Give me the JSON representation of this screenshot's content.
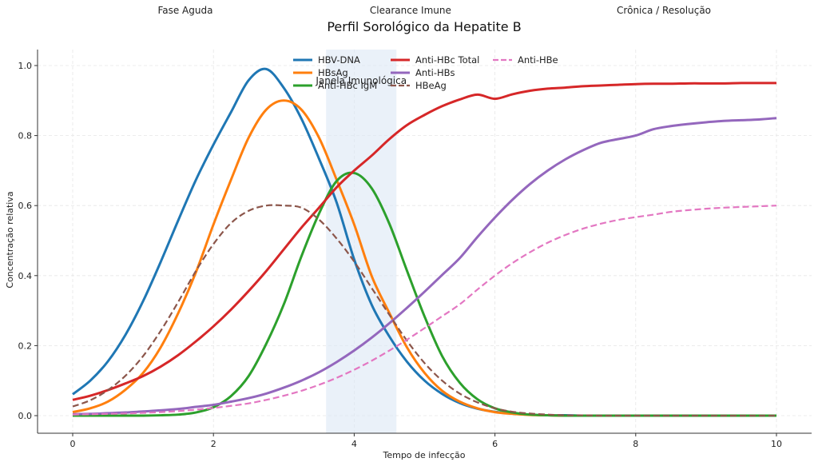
{
  "chart_data": {
    "type": "line",
    "title": "Perfil Sorológico da Hepatite B",
    "xlabel": "Tempo de infecção",
    "ylabel": "Concentração relativa",
    "xlim": [
      -0.5,
      10.5
    ],
    "ylim": [
      -0.05,
      1.05
    ],
    "xticks": [
      0,
      2,
      4,
      6,
      8,
      10
    ],
    "xtick_labels": [
      "0",
      "2",
      "4",
      "6",
      "8",
      "10"
    ],
    "yticks": [
      0.0,
      0.2,
      0.4,
      0.6,
      0.8,
      1.0
    ],
    "ytick_labels": [
      "0.0",
      "0.2",
      "0.4",
      "0.6",
      "0.8",
      "1.0"
    ],
    "grid": true,
    "legend_position": "top-center",
    "phase_labels": [
      {
        "text": "Fase Aguda",
        "x": 1.6
      },
      {
        "text": "Clearance Imune",
        "x": 4.8
      },
      {
        "text": "Crônica / Resolução",
        "x": 8.4
      }
    ],
    "shaded_region": {
      "x_start": 3.6,
      "x_end": 4.6,
      "label": "Janela Imunológica",
      "color": "#dce8f5"
    },
    "x": [
      0,
      0.25,
      0.5,
      0.75,
      1,
      1.25,
      1.5,
      1.75,
      2,
      2.25,
      2.5,
      2.75,
      3,
      3.25,
      3.5,
      3.75,
      4,
      4.25,
      4.5,
      4.75,
      5,
      5.25,
      5.5,
      5.75,
      6,
      6.25,
      6.5,
      6.75,
      7,
      7.25,
      7.5,
      7.75,
      8,
      8.25,
      8.5,
      8.75,
      9,
      9.25,
      9.5,
      9.75,
      10
    ],
    "series": [
      {
        "name": "HBV-DNA",
        "color": "#1f77b4",
        "style": "solid",
        "values": [
          0.061,
          0.1,
          0.155,
          0.231,
          0.327,
          0.439,
          0.558,
          0.673,
          0.774,
          0.867,
          0.958,
          0.99,
          0.936,
          0.848,
          0.734,
          0.609,
          0.446,
          0.316,
          0.226,
          0.154,
          0.1,
          0.062,
          0.036,
          0.02,
          0.011,
          0.006,
          0.003,
          0.001,
          0.001,
          0,
          0,
          0,
          0,
          0,
          0,
          0,
          0,
          0,
          0,
          0,
          0
        ]
      },
      {
        "name": "HBsAg",
        "color": "#ff7f0e",
        "style": "solid",
        "values": [
          0.01,
          0.021,
          0.04,
          0.074,
          0.122,
          0.195,
          0.293,
          0.409,
          0.546,
          0.674,
          0.794,
          0.874,
          0.9,
          0.874,
          0.794,
          0.674,
          0.546,
          0.398,
          0.293,
          0.195,
          0.122,
          0.071,
          0.04,
          0.021,
          0.01,
          0.005,
          0.002,
          0.001,
          0,
          0,
          0,
          0,
          0,
          0,
          0,
          0,
          0,
          0,
          0,
          0,
          0
        ]
      },
      {
        "name": "Anti-HBc IgM",
        "color": "#2ca02c",
        "style": "solid",
        "values": [
          0,
          0,
          0,
          0,
          0,
          0.001,
          0.003,
          0.009,
          0.024,
          0.056,
          0.113,
          0.205,
          0.318,
          0.455,
          0.577,
          0.67,
          0.693,
          0.649,
          0.548,
          0.414,
          0.283,
          0.17,
          0.094,
          0.047,
          0.021,
          0.009,
          0.003,
          0.001,
          0,
          0,
          0,
          0,
          0,
          0,
          0,
          0,
          0,
          0,
          0,
          0,
          0
        ]
      },
      {
        "name": "Anti-HBc Total",
        "color": "#d62728",
        "style": "solid",
        "values": [
          0.045,
          0.057,
          0.073,
          0.092,
          0.113,
          0.14,
          0.173,
          0.212,
          0.255,
          0.303,
          0.356,
          0.413,
          0.475,
          0.537,
          0.594,
          0.652,
          0.7,
          0.743,
          0.79,
          0.83,
          0.859,
          0.884,
          0.903,
          0.917,
          0.905,
          0.918,
          0.928,
          0.934,
          0.937,
          0.941,
          0.943,
          0.945,
          0.947,
          0.948,
          0.948,
          0.949,
          0.949,
          0.949,
          0.95,
          0.95,
          0.95
        ]
      },
      {
        "name": "Anti-HBs",
        "color": "#9467bd",
        "style": "solid",
        "values": [
          0.004,
          0.005,
          0.007,
          0.009,
          0.012,
          0.015,
          0.019,
          0.025,
          0.031,
          0.04,
          0.05,
          0.063,
          0.08,
          0.1,
          0.124,
          0.153,
          0.186,
          0.223,
          0.264,
          0.308,
          0.354,
          0.402,
          0.45,
          0.51,
          0.566,
          0.617,
          0.662,
          0.7,
          0.732,
          0.758,
          0.779,
          0.79,
          0.8,
          0.818,
          0.827,
          0.833,
          0.838,
          0.842,
          0.844,
          0.846,
          0.85
        ]
      },
      {
        "name": "HBeAg",
        "color": "#8c564b",
        "style": "dashed",
        "values": [
          0.026,
          0.044,
          0.073,
          0.114,
          0.17,
          0.242,
          0.325,
          0.413,
          0.49,
          0.55,
          0.585,
          0.6,
          0.6,
          0.594,
          0.56,
          0.506,
          0.44,
          0.364,
          0.288,
          0.214,
          0.15,
          0.1,
          0.063,
          0.038,
          0.021,
          0.011,
          0.006,
          0.003,
          0.001,
          0.001,
          0,
          0,
          0,
          0,
          0,
          0,
          0,
          0,
          0,
          0,
          0
        ]
      },
      {
        "name": "Anti-HBe",
        "color": "#e377c2",
        "style": "dashed",
        "values": [
          0.003,
          0.004,
          0.005,
          0.006,
          0.008,
          0.01,
          0.013,
          0.017,
          0.022,
          0.028,
          0.035,
          0.045,
          0.057,
          0.071,
          0.088,
          0.108,
          0.131,
          0.157,
          0.186,
          0.217,
          0.25,
          0.284,
          0.318,
          0.36,
          0.4,
          0.436,
          0.467,
          0.494,
          0.516,
          0.534,
          0.548,
          0.559,
          0.567,
          0.574,
          0.582,
          0.587,
          0.591,
          0.594,
          0.596,
          0.598,
          0.6
        ]
      }
    ]
  }
}
